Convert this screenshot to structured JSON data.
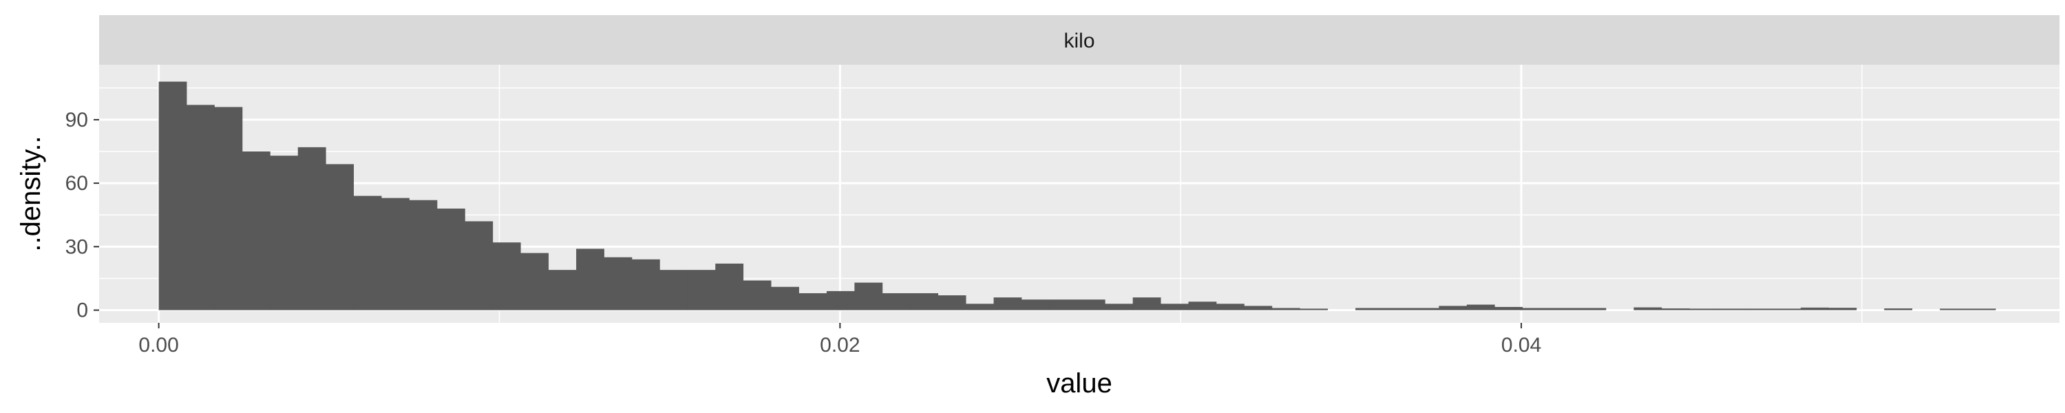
{
  "chart_data": {
    "type": "bar",
    "subtype": "histogram",
    "facet_label": "kilo",
    "xlabel": "value",
    "ylabel": "..density..",
    "xlim": [
      -0.00175,
      0.0558
    ],
    "ylim": [
      -6,
      116
    ],
    "x_ticks": [
      0.0,
      0.02,
      0.04
    ],
    "x_tick_labels": [
      "0.00",
      "0.02",
      "0.04"
    ],
    "y_ticks": [
      0,
      30,
      60,
      90
    ],
    "y_tick_labels": [
      "0",
      "30",
      "60",
      "90"
    ],
    "grid": true,
    "bin_width": 0.000817,
    "bin_start": 0.0,
    "values": [
      108,
      97,
      96,
      75,
      73,
      77,
      69,
      54,
      53,
      52,
      48,
      42,
      32,
      27,
      19,
      29,
      25,
      24,
      19,
      19,
      22,
      14,
      11,
      8,
      9,
      13,
      8,
      8,
      7,
      3,
      6,
      5,
      5,
      5,
      3,
      6,
      3,
      4,
      3,
      2,
      1,
      0.7,
      0,
      1,
      1,
      1,
      2,
      2.6,
      1.5,
      1,
      1,
      1,
      0,
      1.3,
      0.8,
      0.7,
      0.7,
      0.7,
      0.7,
      1.2,
      1.1,
      0,
      0.8,
      0,
      0.7,
      0.7
    ],
    "colors": {
      "bar_fill": "#595959",
      "panel_background": "#ebebeb",
      "grid_line": "#ffffff",
      "strip_background": "#d9d9d9"
    }
  }
}
